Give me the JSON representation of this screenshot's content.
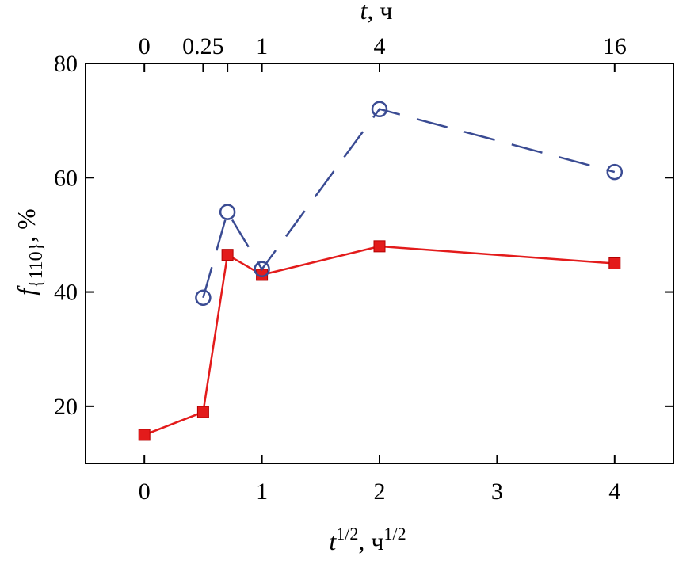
{
  "chart_data": {
    "type": "line",
    "xlabel": {
      "base": "t",
      "sup": "1/2",
      "unit": ", ч",
      "unit_sup": "1/2"
    },
    "ylabel": {
      "base": "f",
      "sub": "{110}",
      "unit": ", %"
    },
    "top_xlabel": {
      "base": "t",
      "unit": ", ч"
    },
    "xlim": [
      -0.5,
      4.5
    ],
    "ylim": [
      10,
      80
    ],
    "x_ticks": [
      0,
      1,
      2,
      3,
      4
    ],
    "x_tick_labels": [
      "0",
      "1",
      "2",
      "3",
      "4"
    ],
    "y_ticks": [
      20,
      40,
      60,
      80
    ],
    "y_tick_labels": [
      "20",
      "40",
      "60",
      "80"
    ],
    "top_ticks": [
      0,
      0.5,
      0.707,
      1,
      2,
      4
    ],
    "top_tick_labels": [
      "0",
      "0.25",
      "",
      "1",
      "4",
      "16"
    ],
    "series": [
      {
        "marker": "square",
        "line": "solid",
        "color": "#e31b1b",
        "x": [
          0,
          0.5,
          0.707,
          1,
          2,
          4
        ],
        "y": [
          15,
          19,
          46.5,
          43,
          48,
          45
        ]
      },
      {
        "marker": "circle",
        "line": "dashed",
        "color": "#3a4b93",
        "x": [
          0.5,
          0.707,
          1,
          2,
          4
        ],
        "y": [
          39,
          54,
          44,
          72,
          61
        ]
      }
    ]
  }
}
